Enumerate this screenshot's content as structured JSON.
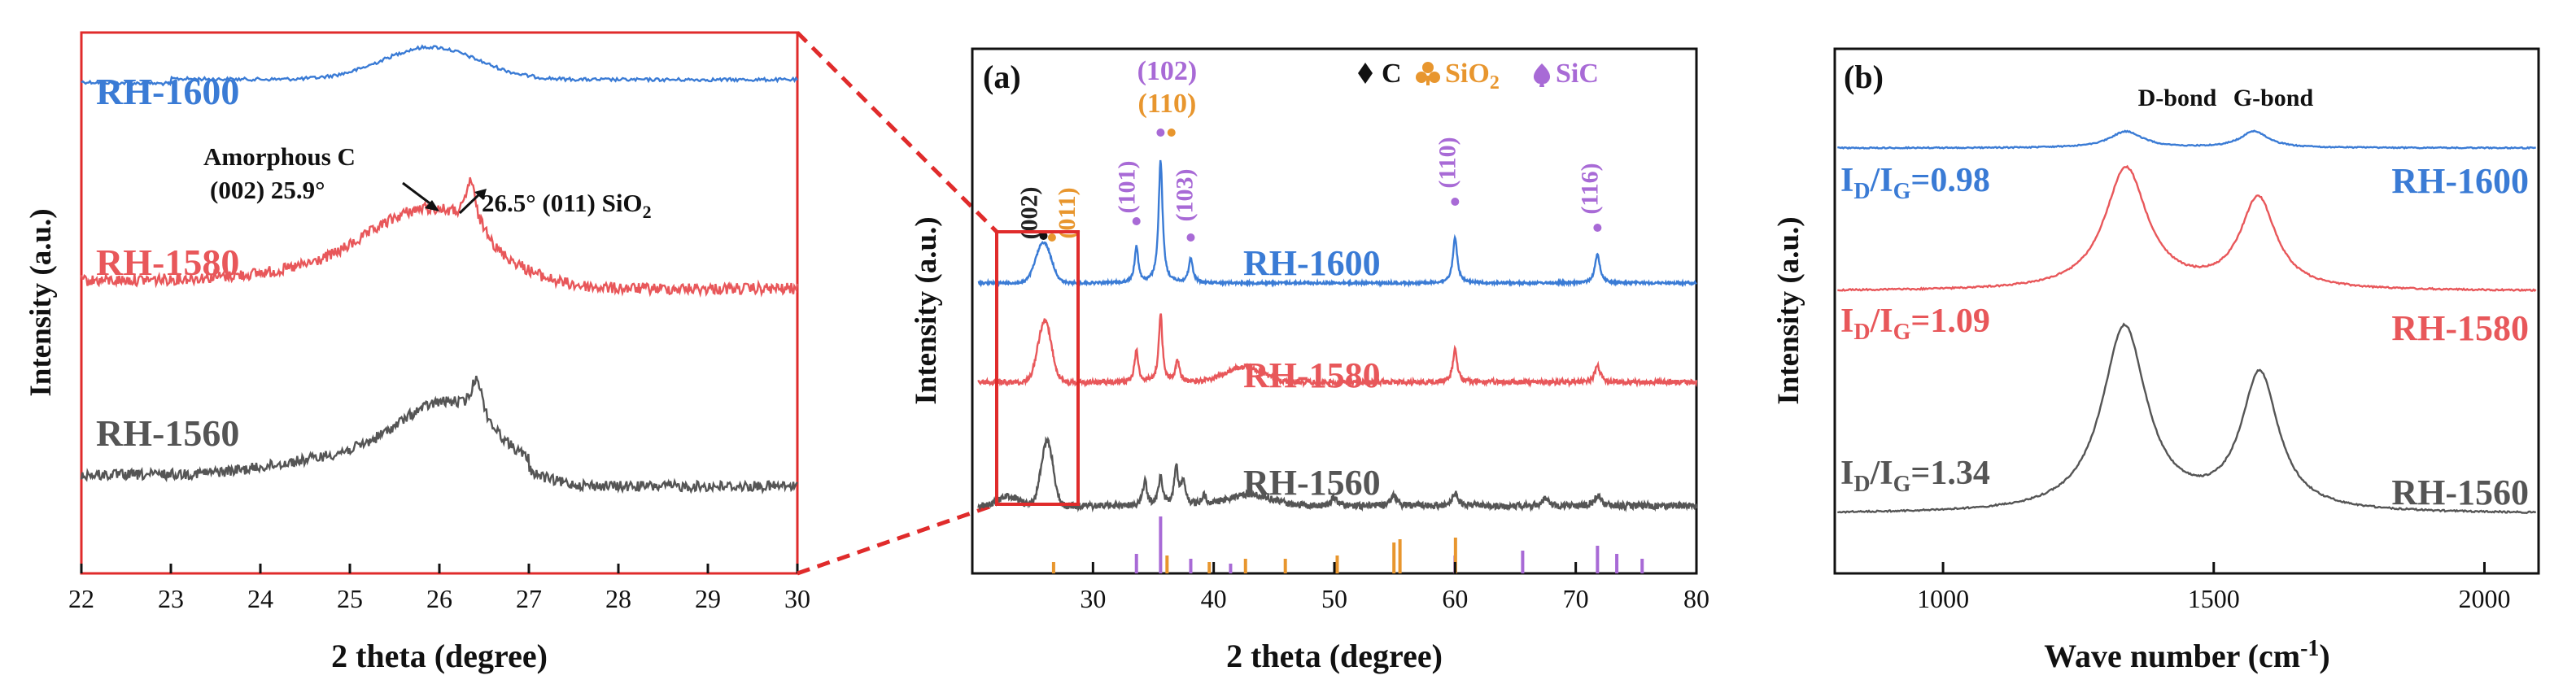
{
  "chart_data": [
    {
      "id": "zoom",
      "type": "line",
      "title": "",
      "xlabel": "2 theta (degree)",
      "ylabel": "Intensity (a.u.)",
      "xlim": [
        22,
        30
      ],
      "xticks": [
        "22",
        "23",
        "24",
        "25",
        "26",
        "27",
        "28",
        "29",
        "30"
      ],
      "series": [
        {
          "name": "RH-1600",
          "color": "#3a7bd5"
        },
        {
          "name": "RH-1580",
          "color": "#e8575a"
        },
        {
          "name": "RH-1560",
          "color": "#555555"
        }
      ],
      "annotations": {
        "amorphous_line1": "Amorphous C",
        "amorphous_line2": "(002) 25.9°",
        "sio2_main": "26.5° (011) SiO",
        "sio2_sub": "2"
      }
    },
    {
      "id": "a",
      "type": "line",
      "panel_label": "(a)",
      "xlabel": "2 theta (degree)",
      "ylabel": "Intensity (a.u.)",
      "xlim": [
        20,
        80
      ],
      "xticks": [
        "30",
        "40",
        "50",
        "60",
        "70",
        "80"
      ],
      "legend": {
        "c": "C",
        "sio2": "SiO",
        "sio2_sub": "2",
        "sic": "SiC"
      },
      "series": [
        {
          "name": "RH-1600",
          "color": "#3a7bd5"
        },
        {
          "name": "RH-1580",
          "color": "#e8575a"
        },
        {
          "name": "RH-1560",
          "color": "#555555"
        }
      ],
      "peak_labels": [
        {
          "label": "(002)",
          "x": 25.9,
          "phase": "C",
          "color": "#222222"
        },
        {
          "label": "(011)",
          "x": 26.6,
          "phase": "SiO2",
          "color": "#e8962e"
        },
        {
          "label": "(101)",
          "x": 33.6,
          "phase": "SiC",
          "color": "#a86ad6"
        },
        {
          "label": "(102)",
          "x": 35.6,
          "phase": "SiC",
          "color": "#a86ad6"
        },
        {
          "label": "(110)",
          "x": 35.6,
          "phase": "SiO2",
          "color": "#e8962e"
        },
        {
          "label": "(103)",
          "x": 38.1,
          "phase": "SiC",
          "color": "#a86ad6"
        },
        {
          "label": "(110)",
          "x": 60.0,
          "phase": "SiC",
          "color": "#a86ad6"
        },
        {
          "label": "(116)",
          "x": 71.8,
          "phase": "SiC",
          "color": "#a86ad6"
        }
      ],
      "reference_sic": [
        33.6,
        35.6,
        38.1,
        41.4,
        60.0,
        65.6,
        71.8,
        73.4,
        75.5
      ],
      "reference_sio2": [
        26.6,
        36.0,
        39.5,
        42.5,
        45.8,
        50.1,
        54.8,
        55.3,
        59.9
      ]
    },
    {
      "id": "b",
      "type": "line",
      "panel_label": "(b)",
      "xlabel": "Wave number (cm",
      "xlabel_sup": "-1",
      "xlabel_end": ")",
      "ylabel": "Intensity (a.u.)",
      "xlim": [
        800,
        2100
      ],
      "xticks": [
        "1000",
        "1500",
        "2000"
      ],
      "band_labels": {
        "d": "D-bond",
        "g": "G-bond"
      },
      "series": [
        {
          "name": "RH-1600",
          "color": "#3a7bd5",
          "ratio": "0.98"
        },
        {
          "name": "RH-1580",
          "color": "#e8575a",
          "ratio": "1.09"
        },
        {
          "name": "RH-1560",
          "color": "#555555",
          "ratio": "1.34"
        }
      ],
      "ratio_parts": {
        "i": "I",
        "d": "D",
        "slash": "/",
        "g": "G",
        "eq": "="
      }
    }
  ]
}
